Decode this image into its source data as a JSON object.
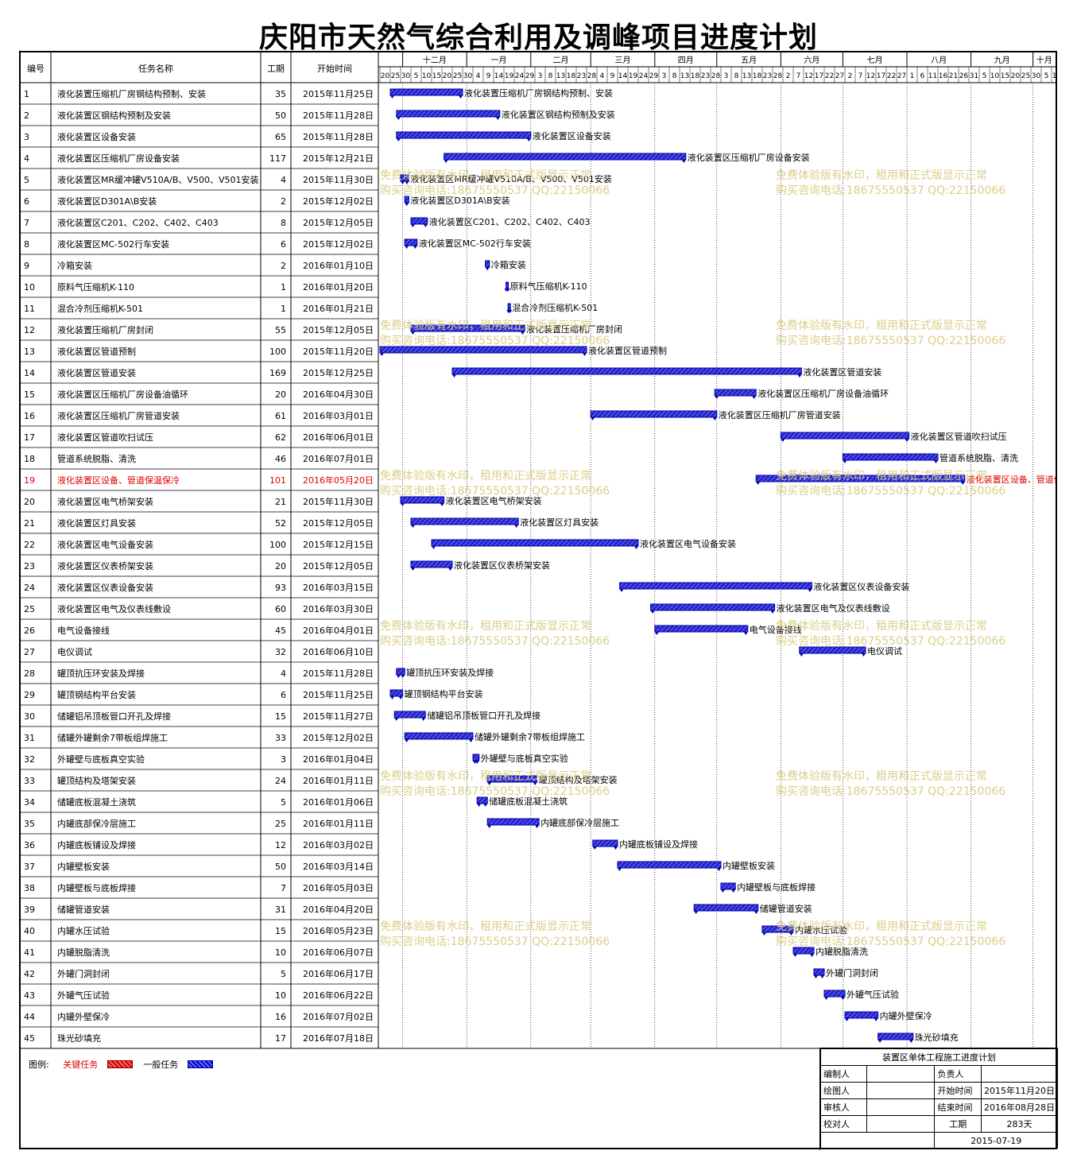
{
  "title": "庆阳市天然气综合利用及调峰项目进度计划",
  "headers": {
    "id": "编号",
    "name": "任务名称",
    "duration": "工期",
    "start": "开始时间"
  },
  "months": [
    "十二月",
    "一月",
    "二月",
    "三月",
    "四月",
    "五月",
    "六月",
    "七月",
    "八月",
    "九月",
    "十月"
  ],
  "day_ticks": [
    "20",
    "25",
    "30",
    "5",
    "10",
    "15",
    "20",
    "25",
    "30",
    "4",
    "9",
    "14",
    "19",
    "24",
    "29",
    "3",
    "8",
    "13",
    "18",
    "23",
    "28",
    "4",
    "9",
    "14",
    "19",
    "24",
    "29",
    "3",
    "8",
    "13",
    "18",
    "23",
    "28",
    "3",
    "8",
    "13",
    "18",
    "23",
    "28",
    "2",
    "7",
    "12",
    "17",
    "22",
    "27",
    "2",
    "7",
    "12",
    "17",
    "22",
    "27",
    "1",
    "6",
    "11",
    "16",
    "21",
    "26",
    "31",
    "5",
    "10",
    "15",
    "20",
    "25",
    "30",
    "5",
    "10",
    "15",
    "20",
    "25",
    "30",
    "4"
  ],
  "watermark": {
    "line1": "免费体验版有水印，租用和正式版显示正常",
    "line2": "购买咨询电话:18675550537 QQ:22150066"
  },
  "colors": {
    "bar": "#2222cc",
    "critical_text": "#e00000"
  },
  "chart_data": {
    "type": "gantt",
    "x_start": "2015-11-20",
    "tasks": [
      {
        "id": "1",
        "name": "液化装置压缩机厂房钢结构预制、安装",
        "duration": 35,
        "start": "2015年11月25日",
        "start_iso": "2015-11-25"
      },
      {
        "id": "2",
        "name": "液化装置区钢结构预制及安装",
        "duration": 50,
        "start": "2015年11月28日",
        "start_iso": "2015-11-28"
      },
      {
        "id": "3",
        "name": "液化装置区设备安装",
        "duration": 65,
        "start": "2015年11月28日",
        "start_iso": "2015-11-28"
      },
      {
        "id": "4",
        "name": "液化装置区压缩机厂房设备安装",
        "duration": 117,
        "start": "2015年12月21日",
        "start_iso": "2015-12-21"
      },
      {
        "id": "5",
        "name": "液化装置区MR缓冲罐V510A/B、V500、V501安装",
        "duration": 4,
        "start": "2015年11月30日",
        "start_iso": "2015-11-30"
      },
      {
        "id": "6",
        "name": "液化装置区D301A\\B安装",
        "duration": 2,
        "start": "2015年12月02日",
        "start_iso": "2015-12-02"
      },
      {
        "id": "7",
        "name": "液化装置区C201、C202、C402、C403",
        "duration": 8,
        "start": "2015年12月05日",
        "start_iso": "2015-12-05"
      },
      {
        "id": "8",
        "name": "液化装置区MC-502行车安装",
        "duration": 6,
        "start": "2015年12月02日",
        "start_iso": "2015-12-02"
      },
      {
        "id": "9",
        "name": "冷箱安装",
        "duration": 2,
        "start": "2016年01月10日",
        "start_iso": "2016-01-10"
      },
      {
        "id": "10",
        "name": "原料气压缩机K-110",
        "duration": 1,
        "start": "2016年01月20日",
        "start_iso": "2016-01-20"
      },
      {
        "id": "11",
        "name": "混合冷剂压缩机K-501",
        "duration": 1,
        "start": "2016年01月21日",
        "start_iso": "2016-01-21"
      },
      {
        "id": "12",
        "name": "液化装置压缩机厂房封闭",
        "duration": 55,
        "start": "2015年12月05日",
        "start_iso": "2015-12-05"
      },
      {
        "id": "13",
        "name": "液化装置区管道预制",
        "duration": 100,
        "start": "2015年11月20日",
        "start_iso": "2015-11-20"
      },
      {
        "id": "14",
        "name": "液化装置区管道安装",
        "duration": 169,
        "start": "2015年12月25日",
        "start_iso": "2015-12-25"
      },
      {
        "id": "15",
        "name": "液化装置区压缩机厂房设备油循环",
        "duration": 20,
        "start": "2016年04月30日",
        "start_iso": "2016-04-30"
      },
      {
        "id": "16",
        "name": "液化装置区压缩机厂房管道安装",
        "duration": 61,
        "start": "2016年03月01日",
        "start_iso": "2016-03-01"
      },
      {
        "id": "17",
        "name": "液化装置区管道吹扫试压",
        "duration": 62,
        "start": "2016年06月01日",
        "start_iso": "2016-06-01"
      },
      {
        "id": "18",
        "name": "管道系统脱脂、清洗",
        "duration": 46,
        "start": "2016年07月01日",
        "start_iso": "2016-07-01"
      },
      {
        "id": "19",
        "name": "液化装置区设备、管道保温保冷",
        "duration": 101,
        "start": "2016年05月20日",
        "start_iso": "2016-05-20",
        "critical": true
      },
      {
        "id": "20",
        "name": "液化装置区电气桥架安装",
        "duration": 21,
        "start": "2015年11月30日",
        "start_iso": "2015-11-30"
      },
      {
        "id": "21",
        "name": "液化装置区灯具安装",
        "duration": 52,
        "start": "2015年12月05日",
        "start_iso": "2015-12-05"
      },
      {
        "id": "22",
        "name": "液化装置区电气设备安装",
        "duration": 100,
        "start": "2015年12月15日",
        "start_iso": "2015-12-15"
      },
      {
        "id": "23",
        "name": "液化装置区仪表桥架安装",
        "duration": 20,
        "start": "2015年12月05日",
        "start_iso": "2015-12-05"
      },
      {
        "id": "24",
        "name": "液化装置区仪表设备安装",
        "duration": 93,
        "start": "2016年03月15日",
        "start_iso": "2016-03-15"
      },
      {
        "id": "25",
        "name": "液化装置区电气及仪表线敷设",
        "duration": 60,
        "start": "2016年03月30日",
        "start_iso": "2016-03-30"
      },
      {
        "id": "26",
        "name": "电气设备接线",
        "duration": 45,
        "start": "2016年04月01日",
        "start_iso": "2016-04-01"
      },
      {
        "id": "27",
        "name": "电仪调试",
        "duration": 32,
        "start": "2016年06月10日",
        "start_iso": "2016-06-10"
      },
      {
        "id": "28",
        "name": "罐顶抗压环安装及焊接",
        "duration": 4,
        "start": "2015年11月28日",
        "start_iso": "2015-11-28"
      },
      {
        "id": "29",
        "name": "罐顶钢结构平台安装",
        "duration": 6,
        "start": "2015年11月25日",
        "start_iso": "2015-11-25"
      },
      {
        "id": "30",
        "name": "储罐铝吊顶板管口开孔及焊接",
        "duration": 15,
        "start": "2015年11月27日",
        "start_iso": "2015-11-27"
      },
      {
        "id": "31",
        "name": "储罐外罐剩余7带板组焊施工",
        "duration": 33,
        "start": "2015年12月02日",
        "start_iso": "2015-12-02"
      },
      {
        "id": "32",
        "name": "外罐壁与底板真空实验",
        "duration": 3,
        "start": "2016年01月04日",
        "start_iso": "2016-01-04"
      },
      {
        "id": "33",
        "name": "罐顶结构及塔架安装",
        "duration": 24,
        "start": "2016年01月11日",
        "start_iso": "2016-01-11"
      },
      {
        "id": "34",
        "name": "储罐底板混凝土浇筑",
        "duration": 5,
        "start": "2016年01月06日",
        "start_iso": "2016-01-06"
      },
      {
        "id": "35",
        "name": "内罐底部保冷层施工",
        "duration": 25,
        "start": "2016年01月11日",
        "start_iso": "2016-01-11"
      },
      {
        "id": "36",
        "name": "内罐底板铺设及焊接",
        "duration": 12,
        "start": "2016年03月02日",
        "start_iso": "2016-03-02"
      },
      {
        "id": "37",
        "name": "内罐壁板安装",
        "duration": 50,
        "start": "2016年03月14日",
        "start_iso": "2016-03-14"
      },
      {
        "id": "38",
        "name": "内罐壁板与底板焊接",
        "duration": 7,
        "start": "2016年05月03日",
        "start_iso": "2016-05-03"
      },
      {
        "id": "39",
        "name": "储罐管道安装",
        "duration": 31,
        "start": "2016年04月20日",
        "start_iso": "2016-04-20"
      },
      {
        "id": "40",
        "name": "内罐水压试验",
        "duration": 15,
        "start": "2016年05月23日",
        "start_iso": "2016-05-23"
      },
      {
        "id": "41",
        "name": "内罐脱脂清洗",
        "duration": 10,
        "start": "2016年06月07日",
        "start_iso": "2016-06-07"
      },
      {
        "id": "42",
        "name": "外罐门洞封闭",
        "duration": 5,
        "start": "2016年06月17日",
        "start_iso": "2016-06-17"
      },
      {
        "id": "43",
        "name": "外罐气压试验",
        "duration": 10,
        "start": "2016年06月22日",
        "start_iso": "2016-06-22"
      },
      {
        "id": "44",
        "name": "内罐外壁保冷",
        "duration": 16,
        "start": "2016年07月02日",
        "start_iso": "2016-07-02"
      },
      {
        "id": "45",
        "name": "珠光砂填充",
        "duration": 17,
        "start": "2016年07月18日",
        "start_iso": "2016-07-18"
      }
    ]
  },
  "legend": {
    "label": "图例:",
    "critical": "关键任务",
    "normal": "一般任务"
  },
  "info": {
    "title": "装置区单体工程施工进度计划",
    "editor_label": "编制人",
    "owner_label": "负责人",
    "drafter_label": "绘图人",
    "start_label": "开始时间",
    "start_value": "2015年11月20日",
    "reviewer_label": "审核人",
    "end_label": "结束时间",
    "end_value": "2016年08月28日",
    "checker_label": "校对人",
    "duration_label": "工期",
    "duration_value": "283天",
    "date": "2015-07-19"
  }
}
